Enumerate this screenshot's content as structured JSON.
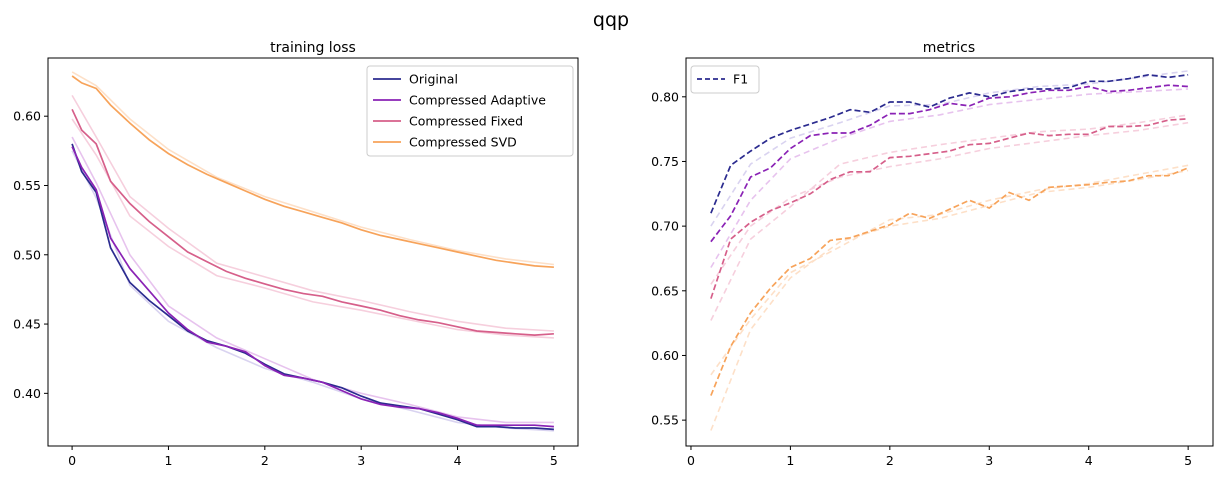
{
  "figure": {
    "suptitle": "qqp"
  },
  "chart_data": [
    {
      "type": "line",
      "title": "training loss",
      "xlabel": "",
      "ylabel": "",
      "xlim": [
        -0.25,
        5.25
      ],
      "ylim": [
        0.362,
        0.642
      ],
      "xticks": [
        0,
        1,
        2,
        3,
        4,
        5
      ],
      "yticks": [
        0.4,
        0.45,
        0.5,
        0.55,
        0.6
      ],
      "xtick_labels": [
        "0",
        "1",
        "2",
        "3",
        "4",
        "5"
      ],
      "ytick_labels": [
        "0.40",
        "0.45",
        "0.50",
        "0.55",
        "0.60"
      ],
      "grid": false,
      "legend": "top-right",
      "series": [
        {
          "name": "Original",
          "color": "#2b2b8f",
          "style": "solid",
          "x": [
            0,
            0.1,
            0.25,
            0.4,
            0.6,
            0.8,
            1.0,
            1.2,
            1.4,
            1.6,
            1.8,
            2.0,
            2.2,
            2.4,
            2.6,
            2.8,
            3.0,
            3.2,
            3.4,
            3.6,
            3.8,
            4.0,
            4.2,
            4.4,
            4.6,
            4.8,
            5.0
          ],
          "y": [
            0.58,
            0.56,
            0.545,
            0.505,
            0.48,
            0.467,
            0.456,
            0.445,
            0.438,
            0.434,
            0.429,
            0.421,
            0.414,
            0.411,
            0.408,
            0.404,
            0.398,
            0.393,
            0.391,
            0.389,
            0.385,
            0.381,
            0.376,
            0.376,
            0.375,
            0.375,
            0.374
          ]
        },
        {
          "name": "Compressed Adaptive",
          "color": "#8a22b5",
          "style": "solid",
          "x": [
            0,
            0.1,
            0.25,
            0.4,
            0.6,
            0.8,
            1.0,
            1.2,
            1.4,
            1.6,
            1.8,
            2.0,
            2.2,
            2.4,
            2.6,
            2.8,
            3.0,
            3.2,
            3.4,
            3.6,
            3.8,
            4.0,
            4.2,
            4.4,
            4.6,
            4.8,
            5.0
          ],
          "y": [
            0.578,
            0.563,
            0.547,
            0.512,
            0.49,
            0.474,
            0.458,
            0.446,
            0.437,
            0.434,
            0.43,
            0.42,
            0.413,
            0.411,
            0.408,
            0.402,
            0.396,
            0.392,
            0.39,
            0.389,
            0.386,
            0.382,
            0.377,
            0.377,
            0.377,
            0.377,
            0.376
          ]
        },
        {
          "name": "Compressed Fixed",
          "color": "#d65f8a",
          "style": "solid",
          "x": [
            0,
            0.1,
            0.25,
            0.4,
            0.6,
            0.8,
            1.0,
            1.2,
            1.4,
            1.6,
            1.8,
            2.0,
            2.2,
            2.4,
            2.6,
            2.8,
            3.0,
            3.2,
            3.4,
            3.6,
            3.8,
            4.0,
            4.2,
            4.4,
            4.6,
            4.8,
            5.0
          ],
          "y": [
            0.605,
            0.59,
            0.58,
            0.553,
            0.537,
            0.524,
            0.513,
            0.502,
            0.495,
            0.488,
            0.483,
            0.479,
            0.475,
            0.472,
            0.47,
            0.466,
            0.463,
            0.46,
            0.456,
            0.453,
            0.451,
            0.448,
            0.445,
            0.444,
            0.443,
            0.442,
            0.443
          ]
        },
        {
          "name": "Compressed SVD",
          "color": "#f7a35a",
          "style": "solid",
          "x": [
            0,
            0.1,
            0.25,
            0.4,
            0.6,
            0.8,
            1.0,
            1.2,
            1.4,
            1.6,
            1.8,
            2.0,
            2.2,
            2.4,
            2.6,
            2.8,
            3.0,
            3.2,
            3.4,
            3.6,
            3.8,
            4.0,
            4.2,
            4.4,
            4.6,
            4.8,
            5.0
          ],
          "y": [
            0.629,
            0.624,
            0.62,
            0.608,
            0.595,
            0.583,
            0.573,
            0.565,
            0.558,
            0.552,
            0.546,
            0.54,
            0.535,
            0.531,
            0.527,
            0.523,
            0.518,
            0.514,
            0.511,
            0.508,
            0.505,
            0.502,
            0.499,
            0.496,
            0.494,
            0.492,
            0.491
          ]
        }
      ],
      "faint_series": [
        {
          "color": "#e7c3ee",
          "x": [
            0,
            0.25,
            0.6,
            1.0,
            1.5,
            2.0,
            2.5,
            3.0,
            3.5,
            4.0,
            4.5,
            5.0
          ],
          "y": [
            0.585,
            0.552,
            0.5,
            0.463,
            0.44,
            0.425,
            0.41,
            0.4,
            0.392,
            0.383,
            0.379,
            0.379
          ]
        },
        {
          "color": "#d9d3f0",
          "x": [
            0,
            0.25,
            0.6,
            1.0,
            1.5,
            2.0,
            2.5,
            3.0,
            3.5,
            4.0,
            4.5,
            5.0
          ],
          "y": [
            0.575,
            0.541,
            0.478,
            0.452,
            0.433,
            0.418,
            0.408,
            0.396,
            0.388,
            0.379,
            0.375,
            0.373
          ]
        },
        {
          "color": "#f6cfdd",
          "x": [
            0,
            0.25,
            0.6,
            1.0,
            1.5,
            2.0,
            2.5,
            3.0,
            3.5,
            4.0,
            4.5,
            5.0
          ],
          "y": [
            0.615,
            0.585,
            0.542,
            0.519,
            0.494,
            0.484,
            0.474,
            0.467,
            0.459,
            0.452,
            0.447,
            0.445
          ]
        },
        {
          "color": "#f6cfdd",
          "x": [
            0,
            0.25,
            0.6,
            1.0,
            1.5,
            2.0,
            2.5,
            3.0,
            3.5,
            4.0,
            4.5,
            5.0
          ],
          "y": [
            0.598,
            0.572,
            0.528,
            0.506,
            0.485,
            0.476,
            0.466,
            0.46,
            0.453,
            0.446,
            0.442,
            0.44
          ]
        },
        {
          "color": "#fde0c8",
          "x": [
            0,
            0.25,
            0.6,
            1.0,
            1.5,
            2.0,
            2.5,
            3.0,
            3.5,
            4.0,
            4.5,
            5.0
          ],
          "y": [
            0.632,
            0.622,
            0.598,
            0.576,
            0.556,
            0.542,
            0.531,
            0.52,
            0.511,
            0.503,
            0.497,
            0.493
          ]
        }
      ]
    },
    {
      "type": "line",
      "title": "metrics",
      "xlabel": "",
      "ylabel": "",
      "xlim": [
        -0.05,
        5.25
      ],
      "ylim": [
        0.53,
        0.83
      ],
      "xticks": [
        0,
        1,
        2,
        3,
        4,
        5
      ],
      "yticks": [
        0.55,
        0.6,
        0.65,
        0.7,
        0.75,
        0.8
      ],
      "xtick_labels": [
        "0",
        "1",
        "2",
        "3",
        "4",
        "5"
      ],
      "ytick_labels": [
        "0.55",
        "0.60",
        "0.65",
        "0.70",
        "0.75",
        "0.80"
      ],
      "grid": false,
      "legend": "top-left",
      "legend_entries": [
        {
          "name": "F1",
          "color": "#2b2b8f",
          "style": "dashed"
        }
      ],
      "series": [
        {
          "color": "#2b2b8f",
          "style": "dashed",
          "x": [
            0.2,
            0.4,
            0.6,
            0.8,
            1.0,
            1.2,
            1.4,
            1.6,
            1.8,
            2.0,
            2.2,
            2.4,
            2.6,
            2.8,
            3.0,
            3.2,
            3.4,
            3.6,
            3.8,
            4.0,
            4.2,
            4.4,
            4.6,
            4.8,
            5.0
          ],
          "y": [
            0.71,
            0.747,
            0.758,
            0.768,
            0.774,
            0.779,
            0.784,
            0.79,
            0.788,
            0.796,
            0.796,
            0.792,
            0.799,
            0.803,
            0.8,
            0.804,
            0.806,
            0.806,
            0.807,
            0.812,
            0.812,
            0.814,
            0.817,
            0.815,
            0.817
          ]
        },
        {
          "color": "#8a22b5",
          "style": "dashed",
          "x": [
            0.2,
            0.4,
            0.6,
            0.8,
            1.0,
            1.2,
            1.4,
            1.6,
            1.8,
            2.0,
            2.2,
            2.4,
            2.6,
            2.8,
            3.0,
            3.2,
            3.4,
            3.6,
            3.8,
            4.0,
            4.2,
            4.4,
            4.6,
            4.8,
            5.0
          ],
          "y": [
            0.688,
            0.708,
            0.738,
            0.745,
            0.76,
            0.77,
            0.772,
            0.772,
            0.778,
            0.787,
            0.787,
            0.79,
            0.795,
            0.793,
            0.799,
            0.8,
            0.803,
            0.805,
            0.805,
            0.808,
            0.804,
            0.805,
            0.807,
            0.809,
            0.808
          ]
        },
        {
          "color": "#d65f8a",
          "style": "dashed",
          "x": [
            0.2,
            0.4,
            0.6,
            0.8,
            1.0,
            1.2,
            1.4,
            1.6,
            1.8,
            2.0,
            2.2,
            2.4,
            2.6,
            2.8,
            3.0,
            3.2,
            3.4,
            3.6,
            3.8,
            4.0,
            4.2,
            4.4,
            4.6,
            4.8,
            5.0
          ],
          "y": [
            0.644,
            0.69,
            0.703,
            0.712,
            0.718,
            0.725,
            0.736,
            0.742,
            0.742,
            0.753,
            0.754,
            0.756,
            0.758,
            0.763,
            0.764,
            0.768,
            0.772,
            0.77,
            0.771,
            0.771,
            0.777,
            0.777,
            0.778,
            0.782,
            0.783
          ]
        },
        {
          "color": "#f7a35a",
          "style": "dashed",
          "x": [
            0.2,
            0.4,
            0.6,
            0.8,
            1.0,
            1.2,
            1.4,
            1.6,
            1.8,
            2.0,
            2.2,
            2.4,
            2.6,
            2.8,
            3.0,
            3.2,
            3.4,
            3.6,
            3.8,
            4.0,
            4.2,
            4.4,
            4.6,
            4.8,
            5.0
          ],
          "y": [
            0.569,
            0.607,
            0.633,
            0.652,
            0.668,
            0.675,
            0.689,
            0.691,
            0.696,
            0.701,
            0.71,
            0.706,
            0.713,
            0.72,
            0.714,
            0.726,
            0.72,
            0.73,
            0.731,
            0.732,
            0.734,
            0.735,
            0.739,
            0.739,
            0.745
          ]
        }
      ],
      "faint_series": [
        {
          "color": "#d9d3f0",
          "x": [
            0.2,
            0.6,
            1.0,
            1.5,
            2.0,
            2.5,
            3.0,
            3.5,
            4.0,
            4.5,
            5.0
          ],
          "y": [
            0.7,
            0.748,
            0.768,
            0.78,
            0.793,
            0.794,
            0.803,
            0.808,
            0.81,
            0.815,
            0.82
          ]
        },
        {
          "color": "#e7c3ee",
          "x": [
            0.2,
            0.6,
            1.0,
            1.5,
            2.0,
            2.5,
            3.0,
            3.5,
            4.0,
            4.5,
            5.0
          ],
          "y": [
            0.668,
            0.72,
            0.752,
            0.768,
            0.781,
            0.786,
            0.794,
            0.798,
            0.802,
            0.804,
            0.806
          ]
        },
        {
          "color": "#f6cfdd",
          "x": [
            0.2,
            0.6,
            1.0,
            1.5,
            2.0,
            2.5,
            3.0,
            3.5,
            4.0,
            4.5,
            5.0
          ],
          "y": [
            0.627,
            0.69,
            0.715,
            0.748,
            0.757,
            0.763,
            0.768,
            0.773,
            0.775,
            0.78,
            0.786
          ]
        },
        {
          "color": "#f6cfdd",
          "x": [
            0.2,
            0.6,
            1.0,
            1.5,
            2.0,
            2.5,
            3.0,
            3.5,
            4.0,
            4.5,
            5.0
          ],
          "y": [
            0.655,
            0.7,
            0.722,
            0.738,
            0.746,
            0.752,
            0.76,
            0.765,
            0.77,
            0.774,
            0.78
          ]
        },
        {
          "color": "#fde0c8",
          "x": [
            0.2,
            0.6,
            1.0,
            1.5,
            2.0,
            2.5,
            3.0,
            3.5,
            4.0,
            4.5,
            5.0
          ],
          "y": [
            0.542,
            0.62,
            0.66,
            0.688,
            0.7,
            0.706,
            0.716,
            0.726,
            0.73,
            0.736,
            0.743
          ]
        },
        {
          "color": "#fde0c8",
          "x": [
            0.2,
            0.6,
            1.0,
            1.5,
            2.0,
            2.5,
            3.0,
            3.5,
            4.0,
            4.5,
            5.0
          ],
          "y": [
            0.585,
            0.628,
            0.664,
            0.684,
            0.705,
            0.709,
            0.72,
            0.728,
            0.733,
            0.74,
            0.747
          ]
        }
      ]
    }
  ]
}
